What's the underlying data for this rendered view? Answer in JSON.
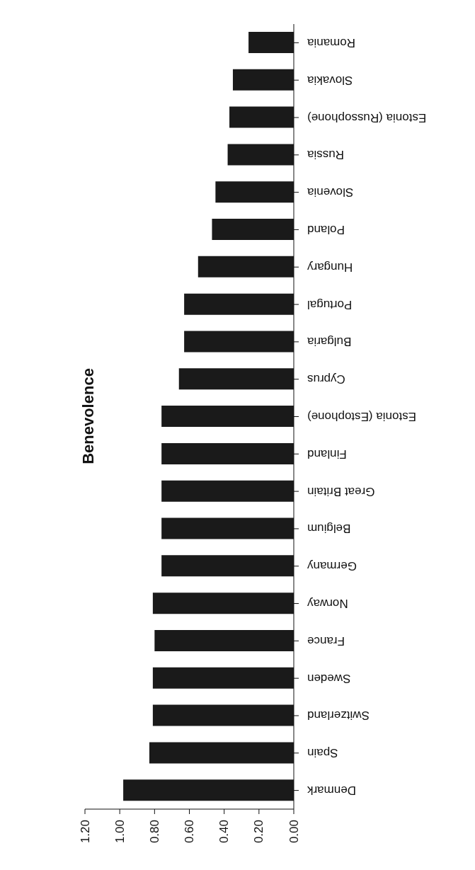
{
  "chart_data": {
    "type": "bar",
    "title": "Benevolence",
    "orientation": "horizontal",
    "categories": [
      "Romania",
      "Slovakia",
      "Estonia (Russophone)",
      "Russia",
      "Slovenia",
      "Poland",
      "Hungary",
      "Portugal",
      "Bulgaria",
      "Cyprus",
      "Estonia (Estophone)",
      "Finland",
      "Great Britain",
      "Belgium",
      "Germany",
      "Norway",
      "France",
      "Sweden",
      "Switzerland",
      "Spain",
      "Denmark"
    ],
    "values": [
      0.26,
      0.35,
      0.37,
      0.38,
      0.45,
      0.47,
      0.55,
      0.63,
      0.63,
      0.66,
      0.76,
      0.76,
      0.76,
      0.76,
      0.76,
      0.81,
      0.8,
      0.81,
      0.81,
      0.83,
      0.98
    ],
    "color": "#1a1a1a",
    "xlim": [
      1.2,
      0
    ],
    "xticks": [
      {
        "value": 0,
        "label": "0.00"
      },
      {
        "value": 0.2,
        "label": "0.20"
      },
      {
        "value": 0.4,
        "label": "0.40"
      },
      {
        "value": 0.6,
        "label": "0.60"
      },
      {
        "value": 0.8,
        "label": "0.80"
      },
      {
        "value": 1.0,
        "label": "1.00"
      },
      {
        "value": 1.2,
        "label": "1.20"
      }
    ]
  }
}
